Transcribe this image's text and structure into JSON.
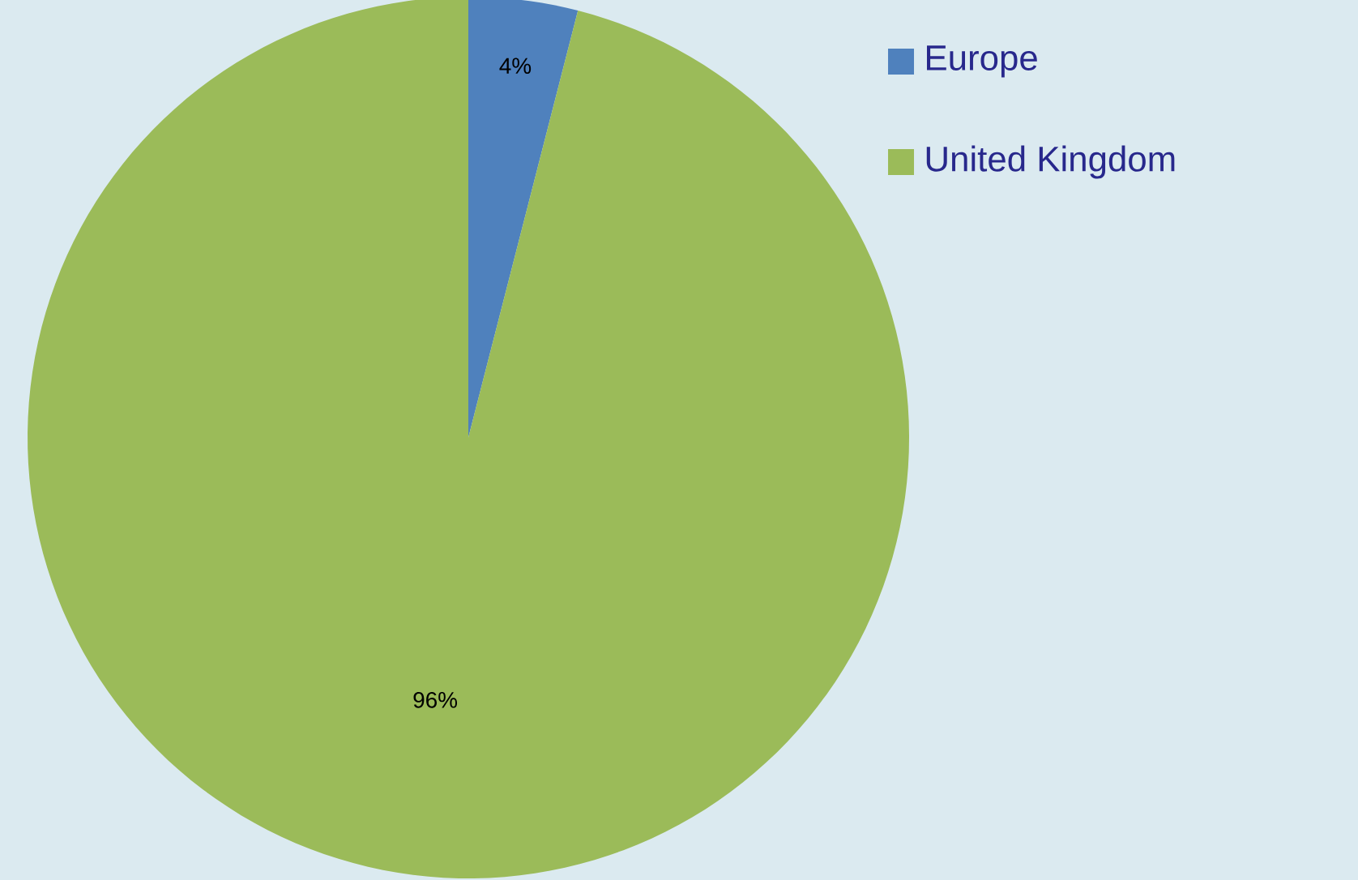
{
  "chart_data": {
    "type": "pie",
    "categories": [
      "Europe",
      "United Kingdom"
    ],
    "values": [
      4,
      96
    ],
    "colors": [
      "#4f81bd",
      "#9bbb59"
    ],
    "value_labels": [
      "4%",
      "96%"
    ],
    "legend": "top right"
  }
}
